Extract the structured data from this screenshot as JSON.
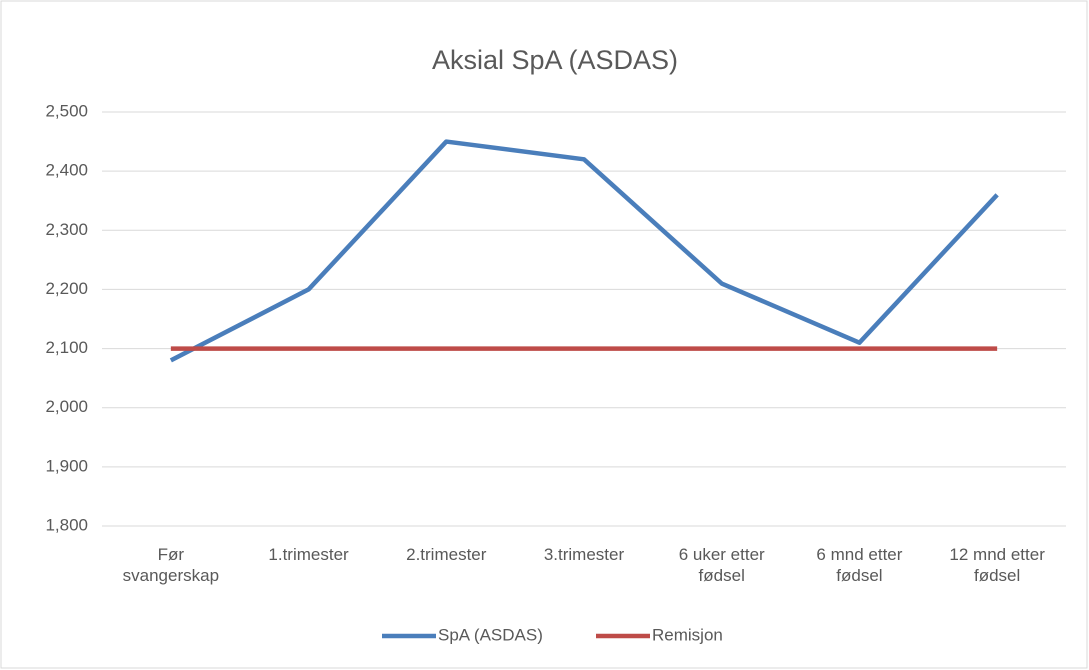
{
  "chart_data": {
    "type": "line",
    "title": "Aksial SpA (ASDAS)",
    "categories": [
      "Før svangerskap",
      "1.trimester",
      "2.trimester",
      "3.trimester",
      "6 uker etter fødsel",
      "6 mnd etter fødsel",
      "12 mnd etter fødsel"
    ],
    "series": [
      {
        "name": "SpA (ASDAS)",
        "color": "#4a7ebb",
        "values": [
          2.08,
          2.2,
          2.45,
          2.42,
          2.21,
          2.11,
          2.36
        ]
      },
      {
        "name": "Remisjon",
        "color": "#be4b48",
        "values": [
          2.1,
          2.1,
          2.1,
          2.1,
          2.1,
          2.1,
          2.1
        ]
      }
    ],
    "ylim": [
      1.8,
      2.5
    ],
    "yticks": [
      {
        "value": 1.8,
        "label": "1,800"
      },
      {
        "value": 1.9,
        "label": "1,900"
      },
      {
        "value": 2.0,
        "label": "2,000"
      },
      {
        "value": 2.1,
        "label": "2,100"
      },
      {
        "value": 2.2,
        "label": "2,200"
      },
      {
        "value": 2.3,
        "label": "2,300"
      },
      {
        "value": 2.4,
        "label": "2,400"
      },
      {
        "value": 2.5,
        "label": "2,500"
      }
    ],
    "grid": true,
    "legend": "bottom"
  }
}
